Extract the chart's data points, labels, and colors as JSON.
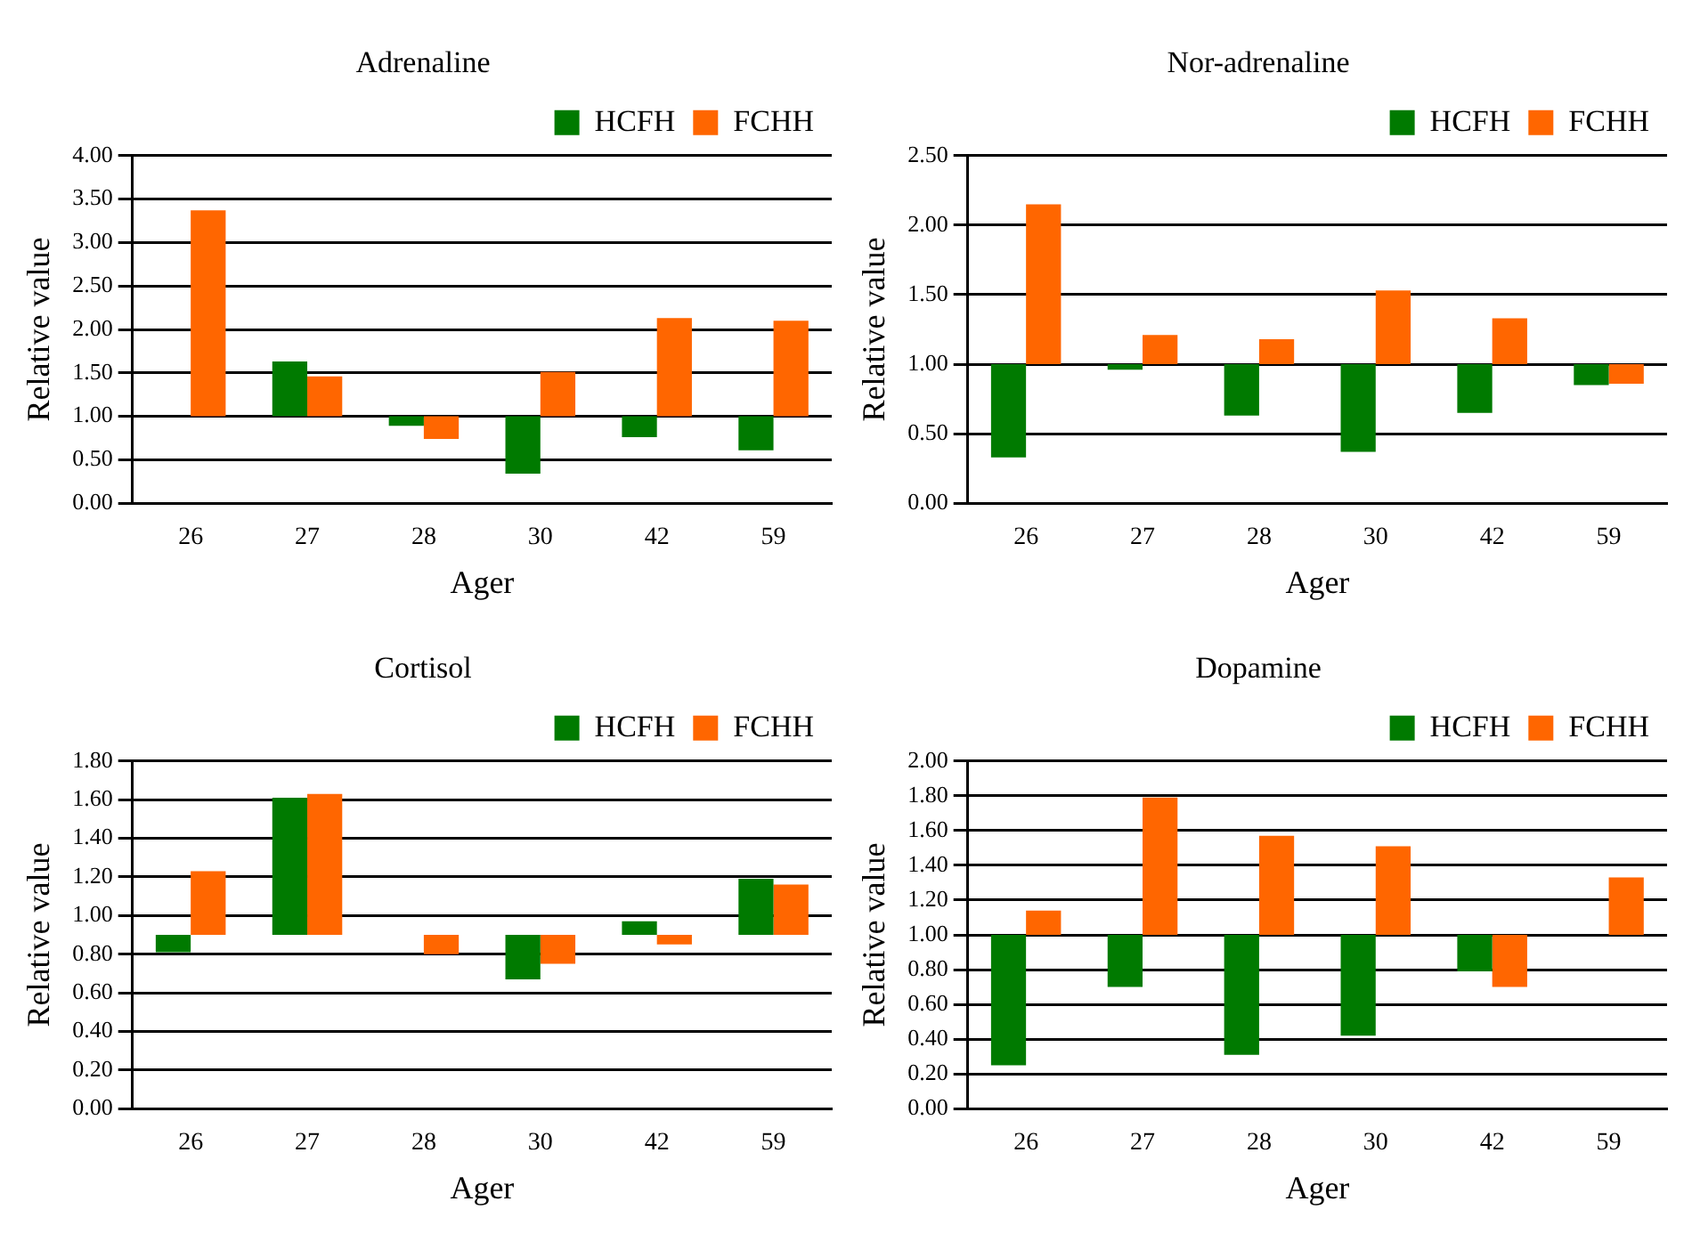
{
  "chart_data": [
    {
      "type": "bar",
      "title": "Adrenaline",
      "xlabel": "Ager",
      "ylabel": "Relative value",
      "categories": [
        "26",
        "27",
        "28",
        "30",
        "42",
        "59"
      ],
      "series": [
        {
          "name": "HCFH",
          "color": "#007a00",
          "base": [
            null,
            1,
            1,
            1,
            1,
            1
          ],
          "values": [
            null,
            0.63,
            -0.11,
            -0.66,
            -0.24,
            -0.39
          ]
        },
        {
          "name": "FCHH",
          "color": "#ff6600",
          "base": [
            1,
            1,
            1,
            1,
            1,
            1
          ],
          "values": [
            2.37,
            0.46,
            -0.26,
            0.51,
            1.13,
            1.1
          ]
        }
      ],
      "ylim": [
        0,
        4
      ],
      "yticks": [
        {
          "value": 0,
          "label": "0.00"
        },
        {
          "value": 0.5,
          "label": "0.50"
        },
        {
          "value": 1,
          "label": "1.00"
        },
        {
          "value": 1.5,
          "label": "1.50"
        },
        {
          "value": 2,
          "label": "2.00"
        },
        {
          "value": 2.5,
          "label": "2.50"
        },
        {
          "value": 3,
          "label": "3.00"
        },
        {
          "value": 3.5,
          "label": "3.50"
        },
        {
          "value": 4,
          "label": "4.00"
        }
      ],
      "grid": "y",
      "legend": "top right"
    },
    {
      "type": "bar",
      "title": "Nor-adrenaline",
      "xlabel": "Ager",
      "ylabel": "Relative value",
      "categories": [
        "26",
        "27",
        "28",
        "30",
        "42",
        "59"
      ],
      "series": [
        {
          "name": "HCFH",
          "color": "#007a00",
          "base": [
            1,
            1,
            1,
            1,
            1,
            1
          ],
          "values": [
            -0.67,
            -0.04,
            -0.37,
            -0.63,
            -0.35,
            -0.15
          ]
        },
        {
          "name": "FCHH",
          "color": "#ff6600",
          "base": [
            1,
            1,
            1,
            1,
            1,
            1
          ],
          "values": [
            1.15,
            0.21,
            0.18,
            0.53,
            0.33,
            -0.14
          ]
        }
      ],
      "ylim": [
        0,
        2.5
      ],
      "yticks": [
        {
          "value": 0,
          "label": "0.00"
        },
        {
          "value": 0.5,
          "label": "0.50"
        },
        {
          "value": 1,
          "label": "1.00"
        },
        {
          "value": 1.5,
          "label": "1.50"
        },
        {
          "value": 2,
          "label": "2.00"
        },
        {
          "value": 2.5,
          "label": "2.50"
        }
      ],
      "grid": "y",
      "legend": "top right"
    },
    {
      "type": "bar",
      "title": "Cortisol",
      "xlabel": "Ager",
      "ylabel": "Relative value",
      "categories": [
        "26",
        "27",
        "28",
        "30",
        "42",
        "59"
      ],
      "series": [
        {
          "name": "HCFH",
          "color": "#007a00",
          "base": [
            0.9,
            0.9,
            null,
            0.9,
            0.9,
            0.9
          ],
          "values": [
            -0.09,
            0.71,
            null,
            -0.23,
            0.07,
            0.29
          ]
        },
        {
          "name": "FCHH",
          "color": "#ff6600",
          "base": [
            0.9,
            0.9,
            0.9,
            0.9,
            0.9,
            0.9
          ],
          "values": [
            0.33,
            0.73,
            -0.1,
            -0.15,
            -0.05,
            0.26
          ]
        }
      ],
      "ylim": [
        0,
        1.8
      ],
      "yticks": [
        {
          "value": 0,
          "label": "0.00"
        },
        {
          "value": 0.2,
          "label": "0.20"
        },
        {
          "value": 0.4,
          "label": "0.40"
        },
        {
          "value": 0.6,
          "label": "0.60"
        },
        {
          "value": 0.8,
          "label": "0.80"
        },
        {
          "value": 1,
          "label": "1.00"
        },
        {
          "value": 1.2,
          "label": "1.20"
        },
        {
          "value": 1.4,
          "label": "1.40"
        },
        {
          "value": 1.6,
          "label": "1.60"
        },
        {
          "value": 1.8,
          "label": "1.80"
        }
      ],
      "grid": "y",
      "legend": "top right"
    },
    {
      "type": "bar",
      "title": "Dopamine",
      "xlabel": "Ager",
      "ylabel": "Relative value",
      "categories": [
        "26",
        "27",
        "28",
        "30",
        "42",
        "59"
      ],
      "series": [
        {
          "name": "HCFH",
          "color": "#007a00",
          "base": [
            1,
            1,
            1,
            1,
            1,
            null
          ],
          "values": [
            -0.75,
            -0.3,
            -0.69,
            -0.58,
            -0.21,
            null
          ]
        },
        {
          "name": "FCHH",
          "color": "#ff6600",
          "base": [
            1,
            1,
            1,
            1,
            1,
            1
          ],
          "values": [
            0.14,
            0.79,
            0.57,
            0.51,
            -0.3,
            0.33
          ]
        }
      ],
      "ylim": [
        0,
        2
      ],
      "yticks": [
        {
          "value": 0,
          "label": "0.00"
        },
        {
          "value": 0.2,
          "label": "0.20"
        },
        {
          "value": 0.4,
          "label": "0.40"
        },
        {
          "value": 0.6,
          "label": "0.60"
        },
        {
          "value": 0.8,
          "label": "0.80"
        },
        {
          "value": 1,
          "label": "1.00"
        },
        {
          "value": 1.2,
          "label": "1.20"
        },
        {
          "value": 1.4,
          "label": "1.40"
        },
        {
          "value": 1.6,
          "label": "1.60"
        },
        {
          "value": 1.8,
          "label": "1.80"
        },
        {
          "value": 2,
          "label": "2.00"
        }
      ],
      "grid": "y",
      "legend": "top right"
    }
  ]
}
